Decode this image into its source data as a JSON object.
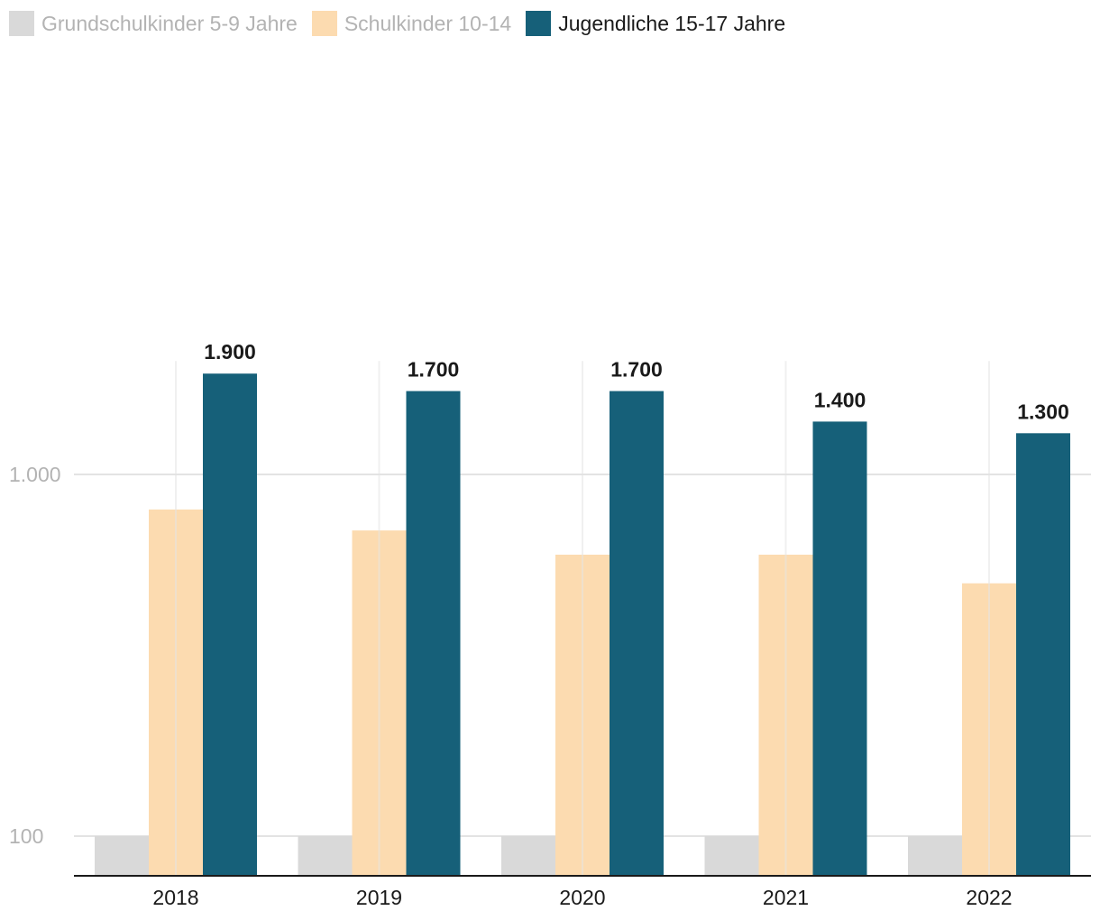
{
  "chart_data": {
    "type": "bar",
    "yscale": "log",
    "ylim": [
      90,
      2000
    ],
    "categories": [
      "2018",
      "2019",
      "2020",
      "2021",
      "2022"
    ],
    "yticks": [
      {
        "value": 100,
        "label": "100"
      },
      {
        "value": 1000,
        "label": "1.000"
      }
    ],
    "series": [
      {
        "name": "Grundschulkinder 5-9 Jahre",
        "color": "#d9d9d9",
        "legend_text_color": "#b3b3b3",
        "values": [
          100,
          100,
          100,
          100,
          100
        ],
        "labels": [
          "",
          "",
          "",
          "",
          ""
        ]
      },
      {
        "name": "Schulkinder 10-14",
        "color": "#fcdbb0",
        "legend_text_color": "#b3b3b3",
        "values": [
          800,
          700,
          600,
          600,
          500
        ],
        "labels": [
          "",
          "",
          "",
          "",
          ""
        ]
      },
      {
        "name": "Jugendliche 15-17 Jahre",
        "color": "#166079",
        "legend_text_color": "#1a1a1a",
        "values": [
          1900,
          1700,
          1700,
          1400,
          1300
        ],
        "labels": [
          "1.900",
          "1.700",
          "1.700",
          "1.400",
          "1.300"
        ]
      }
    ],
    "grid": true,
    "legend": "top-left"
  }
}
